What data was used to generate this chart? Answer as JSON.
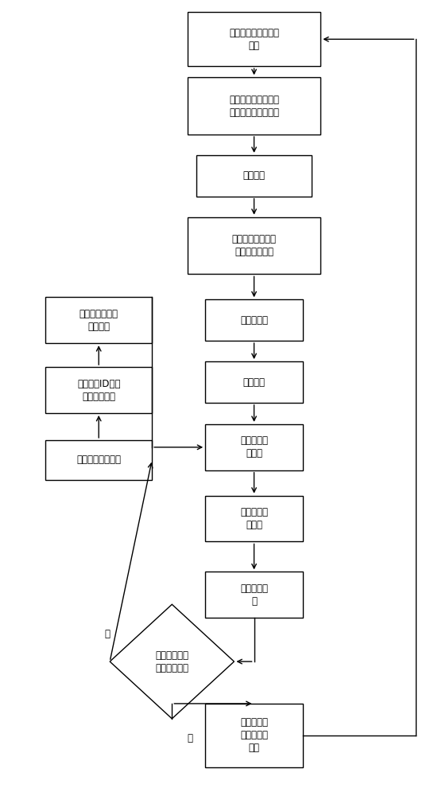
{
  "fig_width": 5.61,
  "fig_height": 10.0,
  "bg_color": "#ffffff",
  "mc": 0.57,
  "lc": 0.22,
  "boxes": {
    "B1": [
      0.57,
      0.952,
      0.3,
      0.068,
      "网络初始化，生成密\n钥池"
    ],
    "B2": [
      0.57,
      0.868,
      0.3,
      0.072,
      "基站对网络进行网格\n划分，选取优先节点"
    ],
    "B3": [
      0.57,
      0.78,
      0.26,
      0.052,
      "簇头选举"
    ],
    "B4": [
      0.57,
      0.692,
      0.3,
      0.072,
      "对簇内优先节点依\n据公式重新编号"
    ],
    "B5": [
      0.57,
      0.598,
      0.22,
      0.052,
      "选取链密钥"
    ],
    "B6": [
      0.57,
      0.52,
      0.22,
      0.052,
      "成簇阶段"
    ],
    "B7": [
      0.57,
      0.438,
      0.22,
      0.058,
      "簇间路由建\n立阶段"
    ],
    "B8": [
      0.57,
      0.348,
      0.22,
      0.058,
      "建立动态密\n钥管理"
    ],
    "B9": [
      0.57,
      0.252,
      0.22,
      0.058,
      "数据传输阶\n段"
    ],
    "B10": [
      0.57,
      0.075,
      0.22,
      0.08,
      "任意簇内优\n先节点使用\n完毕"
    ],
    "L1": [
      0.22,
      0.598,
      0.24,
      0.058,
      "链密钥认证和派\n生出密钥"
    ],
    "L2": [
      0.22,
      0.51,
      0.24,
      0.058,
      "本次依据ID编号\n选择下一簇头"
    ],
    "L3": [
      0.22,
      0.422,
      0.24,
      0.05,
      "本簇发起重选号召"
    ]
  },
  "diamond": [
    0.385,
    0.168,
    0.14,
    0.072,
    "单个簇头值是\n否低于平均值"
  ],
  "font_size": 8.5
}
